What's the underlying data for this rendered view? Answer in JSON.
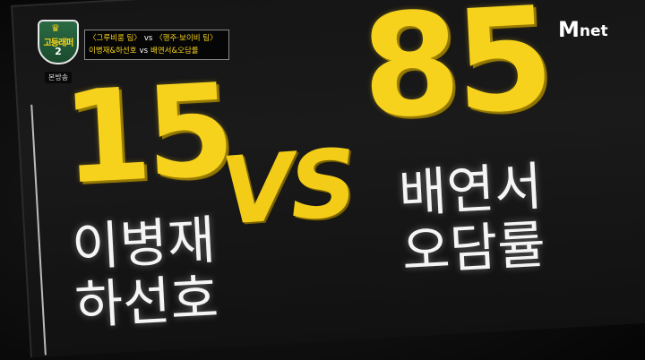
{
  "scoreboard": {
    "left_score": "15",
    "right_score": "85",
    "vs_label": "VS",
    "left_names": [
      "이병재",
      "하선호"
    ],
    "right_names": [
      "배연서",
      "오담률"
    ]
  },
  "overlay": {
    "show_title": "고등래퍼",
    "show_season": "2",
    "broadcast_tag": "본방송",
    "match_top": {
      "team_a": "〈그루비룸 팀〉",
      "vs": "vs",
      "team_b": "〈행주·보이비 팀〉"
    },
    "match_bottom": {
      "team_a": "이병재&하선호",
      "vs": "vs",
      "team_b": "배연서&오담률"
    }
  },
  "channel_logo": {
    "mark": "M",
    "text": "net"
  },
  "colors": {
    "score_yellow": "#f6d21c",
    "name_white": "#f5f5f5",
    "screen_bg": "#151515"
  }
}
